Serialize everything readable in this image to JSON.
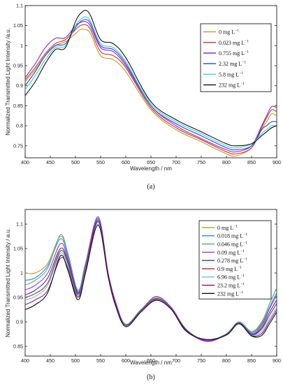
{
  "chart_data": [
    {
      "type": "line",
      "caption": "(a)",
      "xlabel": "Wavelength / nm",
      "ylabel": "Normalized Transmitted Light Intensity /a.u.",
      "xlim": [
        400,
        900
      ],
      "ylim": [
        0.72,
        1.1
      ],
      "xticks": [
        400,
        450,
        500,
        550,
        600,
        650,
        700,
        750,
        800,
        850,
        900
      ],
      "yticks": [
        0.75,
        0.8,
        0.85,
        0.9,
        0.95,
        1,
        1.05,
        1.1
      ],
      "xtick_labels": [
        "400",
        "450",
        "500",
        "550",
        "600",
        "650",
        "700",
        "750",
        "800",
        "850",
        "900"
      ],
      "ytick_labels": [
        "0.75",
        "0.8",
        "0.85",
        "0.9",
        "0.95",
        "1",
        "1.05",
        "1.1"
      ],
      "legend_position": "top-right",
      "series": [
        {
          "name": "0 mg L",
          "sup": "−1",
          "color": "#c8961e",
          "x": [
            400,
            420,
            440,
            460,
            480,
            500,
            510,
            520,
            530,
            550,
            575,
            600,
            650,
            700,
            750,
            800,
            820,
            850,
            870,
            880,
            890,
            900
          ],
          "y": [
            0.91,
            0.94,
            0.975,
            1.0,
            1.01,
            1.03,
            1.04,
            1.04,
            1.03,
            0.975,
            0.965,
            0.935,
            0.84,
            0.79,
            0.76,
            0.73,
            0.725,
            0.745,
            0.79,
            0.81,
            0.83,
            0.825
          ]
        },
        {
          "name": "0.023 mg L",
          "sup": "−1",
          "color": "#c83232",
          "x": [
            400,
            420,
            440,
            460,
            480,
            500,
            510,
            520,
            530,
            550,
            575,
            600,
            650,
            700,
            750,
            800,
            820,
            850,
            870,
            880,
            890,
            900
          ],
          "y": [
            0.915,
            0.945,
            0.98,
            1.005,
            1.015,
            1.04,
            1.05,
            1.052,
            1.04,
            0.985,
            0.975,
            0.945,
            0.845,
            0.795,
            0.765,
            0.735,
            0.73,
            0.745,
            0.795,
            0.82,
            0.84,
            0.835
          ]
        },
        {
          "name": "0.755 mg L",
          "sup": "−1",
          "color": "#8c2ad2",
          "x": [
            400,
            420,
            440,
            460,
            480,
            500,
            510,
            520,
            530,
            550,
            575,
            600,
            650,
            700,
            750,
            800,
            820,
            850,
            870,
            880,
            890,
            900
          ],
          "y": [
            0.92,
            0.955,
            0.995,
            1.018,
            1.02,
            1.05,
            1.058,
            1.06,
            1.048,
            0.995,
            0.985,
            0.95,
            0.85,
            0.8,
            0.768,
            0.74,
            0.735,
            0.75,
            0.8,
            0.825,
            0.848,
            0.845
          ]
        },
        {
          "name": "2.32 mg L",
          "sup": "−1",
          "color": "#2a46c8",
          "x": [
            400,
            420,
            440,
            460,
            480,
            500,
            510,
            520,
            530,
            550,
            575,
            600,
            650,
            700,
            750,
            800,
            820,
            850,
            870,
            880,
            890,
            900
          ],
          "y": [
            0.9,
            0.935,
            0.975,
            1.0,
            1.005,
            1.045,
            1.06,
            1.065,
            1.055,
            1.0,
            0.99,
            0.955,
            0.85,
            0.805,
            0.775,
            0.745,
            0.74,
            0.75,
            0.79,
            0.8,
            0.81,
            0.81
          ]
        },
        {
          "name": "5.8 mg L",
          "sup": "−1",
          "color": "#46c8dc",
          "x": [
            400,
            420,
            440,
            460,
            480,
            500,
            510,
            520,
            530,
            550,
            575,
            600,
            650,
            700,
            750,
            800,
            820,
            850,
            870,
            880,
            890,
            900
          ],
          "y": [
            0.89,
            0.925,
            0.965,
            0.995,
            1.0,
            1.05,
            1.065,
            1.072,
            1.06,
            1.005,
            0.995,
            0.96,
            0.855,
            0.81,
            0.78,
            0.75,
            0.745,
            0.755,
            0.78,
            0.79,
            0.8,
            0.8
          ]
        },
        {
          "name": "232 mg L",
          "sup": "−1",
          "color": "#111111",
          "x": [
            400,
            420,
            440,
            460,
            480,
            500,
            510,
            520,
            530,
            550,
            575,
            600,
            650,
            700,
            750,
            800,
            820,
            850,
            870,
            880,
            890,
            900
          ],
          "y": [
            0.875,
            0.91,
            0.955,
            0.99,
            0.995,
            1.06,
            1.08,
            1.088,
            1.075,
            1.015,
            1.005,
            0.97,
            0.86,
            0.815,
            0.785,
            0.755,
            0.75,
            0.755,
            0.775,
            0.785,
            0.795,
            0.8
          ]
        }
      ]
    },
    {
      "type": "line",
      "caption": "(b)",
      "xlabel": "Wavelength / nm",
      "ylabel": "Normalized Transmitted Light Intensity / a.u.",
      "xlim": [
        400,
        900
      ],
      "ylim": [
        0.83,
        1.13
      ],
      "xticks": [
        400,
        450,
        500,
        550,
        600,
        650,
        700,
        750,
        800,
        850,
        900
      ],
      "yticks": [
        0.85,
        0.9,
        0.95,
        1,
        1.05,
        1.1
      ],
      "xtick_labels": [
        "400",
        "450",
        "500",
        "550",
        "600",
        "650",
        "700",
        "750",
        "800",
        "850",
        "900"
      ],
      "ytick_labels": [
        "0.85",
        "0.9",
        "0.95",
        "1",
        "1.05",
        "1.1"
      ],
      "legend_position": "top-right",
      "series": [
        {
          "name": "0 mg L",
          "sup": "−1",
          "color": "#c8961e",
          "x": [
            400,
            420,
            445,
            470,
            485,
            505,
            520,
            545,
            565,
            580,
            600,
            630,
            660,
            690,
            720,
            760,
            800,
            825,
            850,
            870,
            885,
            900
          ],
          "y": [
            1.0,
            1.0,
            1.02,
            1.075,
            1.04,
            0.965,
            1.02,
            1.115,
            1.0,
            0.94,
            0.895,
            0.925,
            0.95,
            0.93,
            0.885,
            0.86,
            0.875,
            0.9,
            0.88,
            0.9,
            0.935,
            0.97
          ]
        },
        {
          "name": "0.018 mg L",
          "sup": "−1",
          "color": "#2f8fd6",
          "x": [
            400,
            420,
            445,
            470,
            485,
            505,
            520,
            545,
            565,
            580,
            600,
            630,
            660,
            690,
            720,
            760,
            800,
            825,
            850,
            870,
            885,
            900
          ],
          "y": [
            0.985,
            0.99,
            1.015,
            1.07,
            1.035,
            0.962,
            1.018,
            1.112,
            0.998,
            0.938,
            0.894,
            0.924,
            0.948,
            0.928,
            0.884,
            0.86,
            0.874,
            0.898,
            0.878,
            0.895,
            0.928,
            0.96
          ]
        },
        {
          "name": "0.046 mg L",
          "sup": "−1",
          "color": "#50b48c",
          "x": [
            400,
            420,
            445,
            470,
            485,
            505,
            520,
            545,
            565,
            580,
            600,
            630,
            660,
            690,
            720,
            760,
            800,
            825,
            850,
            870,
            885,
            900
          ],
          "y": [
            0.975,
            0.985,
            1.01,
            1.078,
            1.04,
            0.965,
            1.02,
            1.11,
            0.998,
            0.938,
            0.895,
            0.925,
            0.948,
            0.93,
            0.885,
            0.862,
            0.876,
            0.9,
            0.88,
            0.898,
            0.935,
            0.97
          ]
        },
        {
          "name": "0.09 mg L",
          "sup": "−1",
          "color": "#a03cdc",
          "x": [
            400,
            420,
            445,
            470,
            485,
            505,
            520,
            545,
            565,
            580,
            600,
            630,
            660,
            690,
            720,
            760,
            800,
            825,
            850,
            870,
            885,
            900
          ],
          "y": [
            0.965,
            0.975,
            1.0,
            1.06,
            1.03,
            0.96,
            1.015,
            1.115,
            1.0,
            0.94,
            0.893,
            0.923,
            0.952,
            0.93,
            0.884,
            0.86,
            0.874,
            0.898,
            0.876,
            0.892,
            0.925,
            0.955
          ]
        },
        {
          "name": "0.278 mg L",
          "sup": "−1",
          "color": "#323caa",
          "x": [
            400,
            420,
            445,
            470,
            485,
            505,
            520,
            545,
            565,
            580,
            600,
            630,
            660,
            690,
            720,
            760,
            800,
            825,
            850,
            870,
            885,
            900
          ],
          "y": [
            0.955,
            0.965,
            0.99,
            1.05,
            1.025,
            0.958,
            1.012,
            1.108,
            0.996,
            0.936,
            0.892,
            0.922,
            0.946,
            0.928,
            0.884,
            0.862,
            0.874,
            0.898,
            0.875,
            0.888,
            0.918,
            0.945
          ]
        },
        {
          "name": "0.9 mg L",
          "sup": "−1",
          "color": "#b42828",
          "x": [
            400,
            420,
            445,
            470,
            485,
            505,
            520,
            545,
            565,
            580,
            600,
            630,
            660,
            690,
            720,
            760,
            800,
            825,
            850,
            870,
            885,
            900
          ],
          "y": [
            0.95,
            0.958,
            0.98,
            1.045,
            1.02,
            0.955,
            1.01,
            1.105,
            0.995,
            0.935,
            0.893,
            0.922,
            0.946,
            0.928,
            0.883,
            0.862,
            0.873,
            0.897,
            0.874,
            0.885,
            0.912,
            0.938
          ]
        },
        {
          "name": "6.96 mg L",
          "sup": "−1",
          "color": "#5ac8e6",
          "x": [
            400,
            420,
            445,
            470,
            485,
            505,
            520,
            545,
            565,
            580,
            600,
            630,
            660,
            690,
            720,
            760,
            800,
            825,
            850,
            870,
            885,
            900
          ],
          "y": [
            0.945,
            0.952,
            0.975,
            1.04,
            1.015,
            0.952,
            1.008,
            1.1,
            0.994,
            0.934,
            0.892,
            0.921,
            0.945,
            0.927,
            0.882,
            0.863,
            0.873,
            0.897,
            0.873,
            0.88,
            0.905,
            0.93
          ]
        },
        {
          "name": "23.2 mg L",
          "sup": "−1",
          "color": "#8c1e96",
          "x": [
            400,
            420,
            445,
            470,
            485,
            505,
            520,
            545,
            565,
            580,
            600,
            630,
            660,
            690,
            720,
            760,
            800,
            825,
            850,
            870,
            885,
            900
          ],
          "y": [
            0.935,
            0.945,
            0.965,
            1.03,
            1.01,
            0.95,
            1.005,
            1.105,
            0.996,
            0.936,
            0.893,
            0.923,
            0.947,
            0.929,
            0.883,
            0.862,
            0.874,
            0.898,
            0.872,
            0.876,
            0.9,
            0.925
          ]
        },
        {
          "name": "232 mg L",
          "sup": "−1",
          "color": "#111111",
          "x": [
            400,
            420,
            445,
            470,
            485,
            505,
            520,
            545,
            565,
            580,
            600,
            630,
            660,
            690,
            720,
            760,
            800,
            825,
            850,
            870,
            885,
            900
          ],
          "y": [
            0.925,
            0.935,
            0.96,
            1.035,
            1.005,
            0.945,
            1.0,
            1.098,
            0.992,
            0.932,
            0.89,
            0.92,
            0.944,
            0.926,
            0.881,
            0.864,
            0.873,
            0.896,
            0.871,
            0.872,
            0.895,
            0.92
          ]
        }
      ]
    }
  ]
}
